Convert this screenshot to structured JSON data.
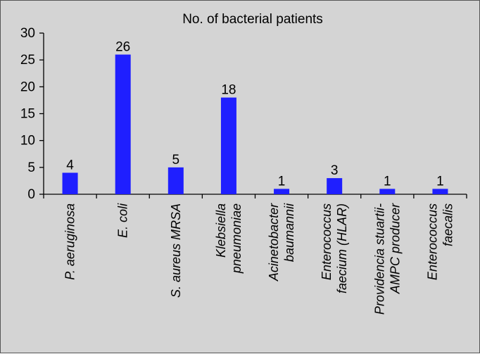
{
  "chart_data": {
    "type": "bar",
    "title": "No. of bacterial patients",
    "xlabel": "",
    "ylabel": "",
    "ylim": [
      0,
      30
    ],
    "yticks": [
      0,
      5,
      10,
      15,
      20,
      25,
      30
    ],
    "grid": false,
    "legend": "none",
    "bar_color": "#1f1fff",
    "background_color": "#d4d4d4",
    "categories": [
      [
        "P. aeruginosa"
      ],
      [
        "E. coli"
      ],
      [
        "S. aureus MRSA"
      ],
      [
        "Klebsiella",
        "pneumoniae"
      ],
      [
        "Acinetobacter",
        "baumannii"
      ],
      [
        "Enterococcus",
        "faecium (HLAR)"
      ],
      [
        "Providencia stuartii-",
        "AMPC producer"
      ],
      [
        "Enterococcus",
        "faecalis"
      ]
    ],
    "values": [
      4,
      26,
      5,
      18,
      1,
      3,
      1,
      1
    ]
  }
}
